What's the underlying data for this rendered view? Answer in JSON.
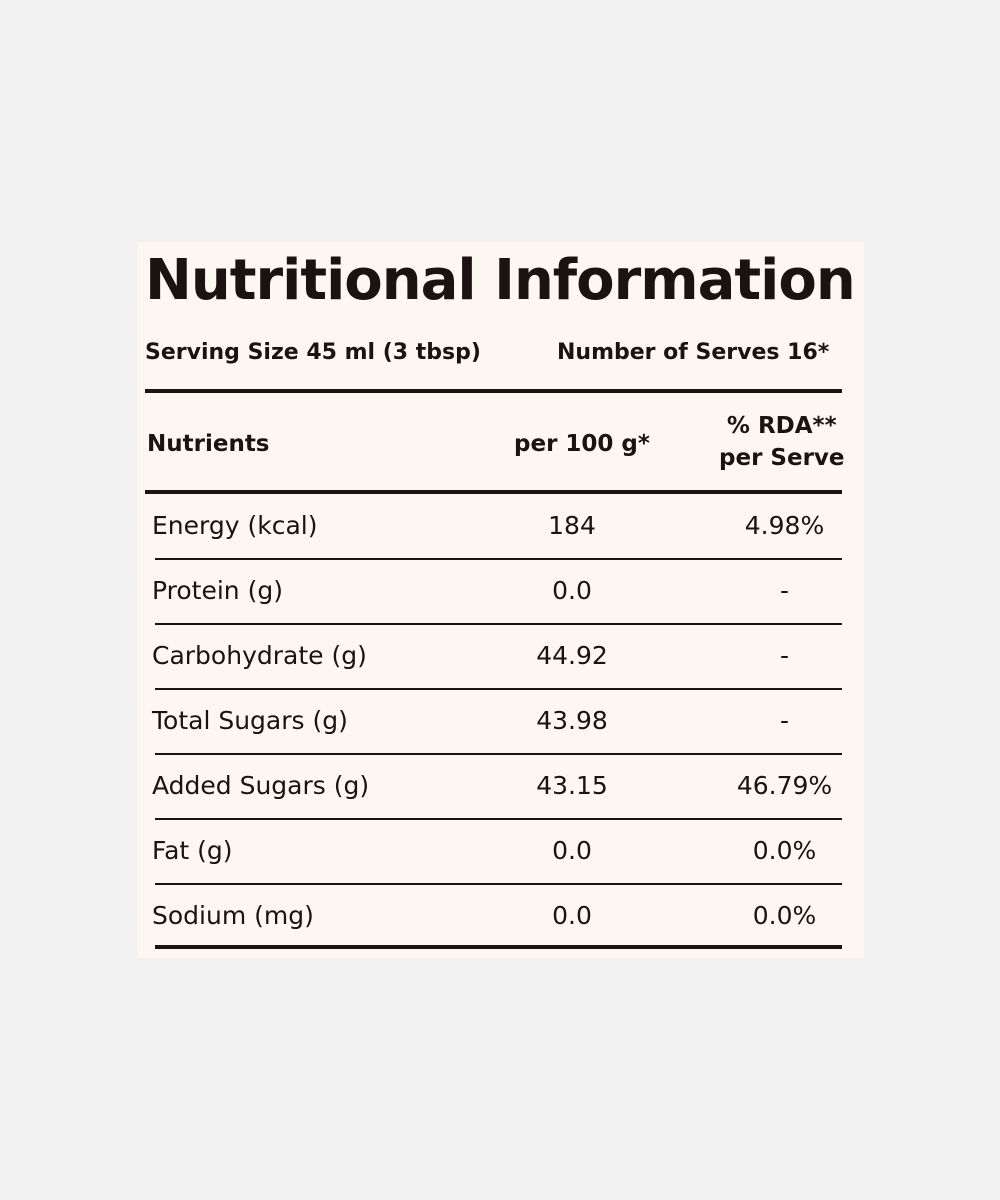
{
  "title": "Nutritional Information",
  "serving": {
    "size": "Serving Size 45 ml (3 tbsp)",
    "serves": "Number of Serves 16*"
  },
  "table": {
    "header": [
      "Nutrients",
      "per 100 g*",
      "% RDA**\nper Serve"
    ],
    "rows": [
      [
        "Energy (kcal)",
        "184",
        "4.98%"
      ],
      [
        "Protein (g)",
        "0.0",
        "-"
      ],
      [
        "Carbohydrate (g)",
        "44.92",
        "-"
      ],
      [
        "Total Sugars (g)",
        "43.98",
        "-"
      ],
      [
        "Added Sugars (g)",
        "43.15",
        "46.79%"
      ],
      [
        "Fat (g)",
        "0.0",
        "0.0%"
      ],
      [
        "Sodium (mg)",
        "0.0",
        "0.0%"
      ]
    ]
  }
}
